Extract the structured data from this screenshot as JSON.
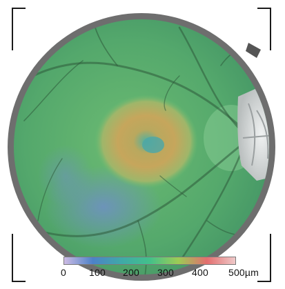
{
  "colorbar": {
    "ticks": [
      "0",
      "100",
      "200",
      "300",
      "400",
      "500µm"
    ],
    "min": 0,
    "max": 500,
    "gradient": [
      "#cdbbe4",
      "#4d82c8",
      "#3fa9a8",
      "#43c08a",
      "#9ccc55",
      "#e36e6e",
      "#efc9c9"
    ]
  },
  "colors": {
    "rim": "#6e6e6e",
    "base_green": "#5fae6d",
    "macula_warm": "#c9a45a",
    "disc": "#d9dcdc",
    "vessel": "#2e5a3a"
  }
}
